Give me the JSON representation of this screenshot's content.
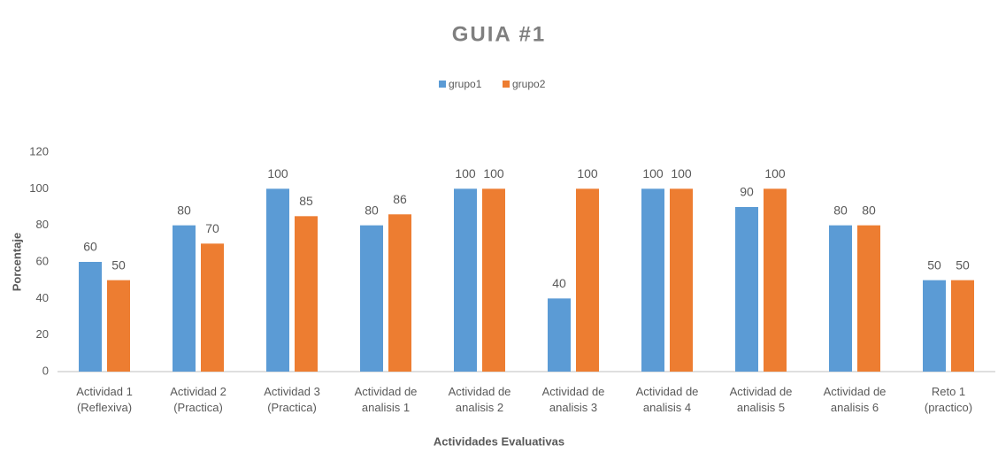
{
  "chart_data": {
    "type": "bar",
    "title": "GUIA #1",
    "x_label": "Actividades Evaluativas",
    "y_label": "Porcentaje",
    "categories": [
      "Actividad 1 (Reflexiva)",
      "Actividad 2 (Practica)",
      "Actividad 3 (Practica)",
      "Actividad de analisis 1",
      "Actividad de analisis 2",
      "Actividad de analisis 3",
      "Actividad de analisis 4",
      "Actividad de analisis 5",
      "Actividad de analisis 6",
      "Reto 1 (practico)"
    ],
    "series": [
      {
        "name": "grupo1",
        "color": "#5b9bd5",
        "values": [
          60,
          80,
          100,
          80,
          100,
          40,
          100,
          90,
          80,
          50
        ]
      },
      {
        "name": "grupo2",
        "color": "#ed7d31",
        "values": [
          50,
          70,
          85,
          86,
          100,
          100,
          100,
          100,
          80,
          50
        ]
      }
    ],
    "ylim": [
      0,
      120
    ],
    "yticks": [
      0,
      20,
      40,
      60,
      80,
      100,
      120
    ],
    "grid": false,
    "legend": "top"
  }
}
